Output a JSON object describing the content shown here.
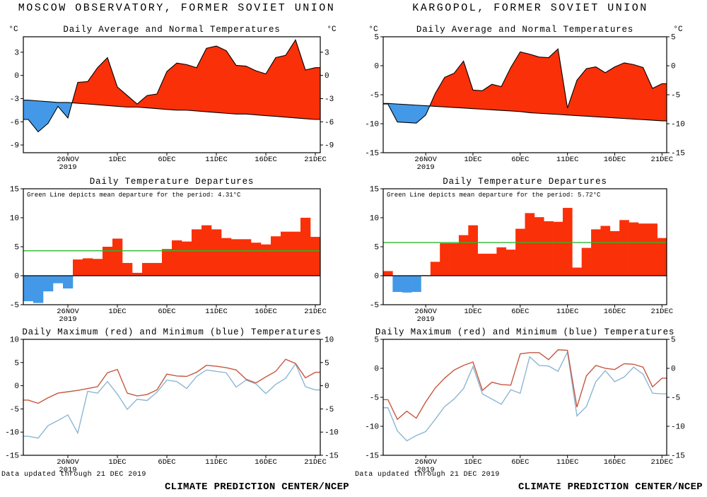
{
  "footer": {
    "note": "Data updated through 21 DEC 2019",
    "brand": "CLIMATE PREDICTION CENTER/NCEP"
  },
  "colors": {
    "above_normal_fill": "#fa3008",
    "below_normal_fill": "#4399e8",
    "mean_departure_line": "#2cb82c",
    "max_temp_line": "#c65740",
    "min_temp_line": "#8cb6d4",
    "axis": "#000000"
  },
  "x_axis": {
    "start": "22 NOV 2019",
    "end": "21 DEC 2019",
    "slots": 30,
    "ticks": [
      {
        "slot": 4,
        "label": "26NOV",
        "sublabel": "2019"
      },
      {
        "slot": 9,
        "label": "1DEC"
      },
      {
        "slot": 14,
        "label": "6DEC"
      },
      {
        "slot": 19,
        "label": "11DEC"
      },
      {
        "slot": 24,
        "label": "16DEC"
      },
      {
        "slot": 29,
        "label": "21DEC"
      }
    ]
  },
  "chart_data": [
    {
      "station": "MOSCOW OBSERVATORY, FORMER SOVIET UNION",
      "charts": [
        {
          "type": "area",
          "title": "Daily Average and Normal Temperatures",
          "unit": "°C",
          "ylim": [
            -10,
            5
          ],
          "yticks": [
            3,
            0,
            -3,
            -6,
            -9
          ],
          "yticks_right": true,
          "series": {
            "average": [
              -5.7,
              -7.3,
              -6.2,
              -4.0,
              -5.5,
              -0.9,
              -0.8,
              1.0,
              2.3,
              -1.5,
              -2.6,
              -3.7,
              -2.6,
              -2.4,
              0.5,
              1.6,
              1.4,
              1.0,
              3.5,
              3.8,
              3.2,
              1.3,
              1.2,
              0.6,
              0.2,
              2.3,
              2.6,
              4.6,
              0.7,
              1.0
            ],
            "normal": [
              -3.2,
              -3.3,
              -3.4,
              -3.5,
              -3.5,
              -3.6,
              -3.7,
              -3.8,
              -3.9,
              -4.0,
              -4.1,
              -4.1,
              -4.2,
              -4.3,
              -4.4,
              -4.5,
              -4.5,
              -4.6,
              -4.7,
              -4.8,
              -4.9,
              -5.0,
              -5.0,
              -5.1,
              -5.2,
              -5.3,
              -5.4,
              -5.5,
              -5.6,
              -5.7
            ]
          }
        },
        {
          "type": "bar",
          "title": "Daily Temperature Departures",
          "ylim": [
            -5,
            15
          ],
          "yticks": [
            15,
            10,
            5,
            0,
            -5
          ],
          "yticks_right": false,
          "annotation": "Green Line depicts mean departure for the period: 4.31°C",
          "mean_departure": 4.31,
          "values": [
            -4.4,
            -4.7,
            -2.7,
            -1.3,
            -2.2,
            2.8,
            3.0,
            2.9,
            5.0,
            6.4,
            2.2,
            0.5,
            2.2,
            2.2,
            4.6,
            6.1,
            5.9,
            8.0,
            8.7,
            8.0,
            6.5,
            6.3,
            6.3,
            5.7,
            5.4,
            6.8,
            7.6,
            7.6,
            10.0,
            6.7
          ]
        },
        {
          "type": "line",
          "title": "Daily Maximum (red) and Minimum (blue) Temperatures",
          "ylim": [
            -15,
            10
          ],
          "yticks": [
            10,
            5,
            0,
            -5,
            -10,
            -15
          ],
          "yticks_right": true,
          "series": {
            "max": [
              -3.1,
              -3.8,
              -2.6,
              -1.6,
              -1.3,
              -1.0,
              -0.6,
              -0.2,
              2.8,
              3.5,
              -1.6,
              -2.2,
              -1.9,
              -0.9,
              2.5,
              2.1,
              2.0,
              2.9,
              4.4,
              4.2,
              3.9,
              3.4,
              1.4,
              0.6,
              1.9,
              3.1,
              5.7,
              4.8,
              1.7,
              2.9
            ],
            "min": [
              -10.9,
              -11.3,
              -8.6,
              -7.5,
              -6.3,
              -10.2,
              -1.2,
              -1.6,
              0.9,
              -1.8,
              -5.1,
              -2.9,
              -3.2,
              -1.4,
              1.2,
              0.9,
              -0.6,
              2.0,
              3.4,
              3.1,
              2.8,
              -0.3,
              1.2,
              0.4,
              -1.7,
              0.3,
              1.6,
              4.7,
              -0.2,
              -0.9
            ]
          }
        }
      ]
    },
    {
      "station": "KARGOPOL, FORMER SOVIET UNION",
      "charts": [
        {
          "type": "area",
          "title": "Daily Average and Normal Temperatures",
          "unit": "°C",
          "ylim": [
            -15,
            5
          ],
          "yticks": [
            5,
            0,
            -5,
            -10,
            -15
          ],
          "yticks_right": true,
          "series": {
            "average": [
              -6.6,
              -9.7,
              -9.8,
              -9.9,
              -8.5,
              -4.8,
              -2.0,
              -1.3,
              0.8,
              -4.2,
              -4.3,
              -3.2,
              -3.6,
              -0.3,
              2.4,
              2.0,
              1.5,
              1.4,
              2.9,
              -7.3,
              -2.5,
              -0.5,
              -0.2,
              -1.2,
              -0.2,
              0.5,
              0.2,
              -0.3,
              -3.9,
              -3.1
            ],
            "normal": [
              -6.5,
              -6.6,
              -6.7,
              -6.8,
              -6.9,
              -7.0,
              -7.1,
              -7.2,
              -7.3,
              -7.4,
              -7.5,
              -7.6,
              -7.7,
              -7.8,
              -7.9,
              -8.1,
              -8.2,
              -8.3,
              -8.4,
              -8.5,
              -8.6,
              -8.7,
              -8.8,
              -8.9,
              -9.0,
              -9.1,
              -9.2,
              -9.3,
              -9.4,
              -9.5
            ]
          }
        },
        {
          "type": "bar",
          "title": "Daily Temperature Departures",
          "ylim": [
            -5,
            15
          ],
          "yticks": [
            15,
            10,
            5,
            0,
            -5
          ],
          "yticks_right": false,
          "annotation": "Green Line depicts mean departure for the period: 5.72°C",
          "mean_departure": 5.72,
          "values": [
            0.8,
            -2.8,
            -2.9,
            -2.8,
            0.1,
            2.4,
            5.6,
            5.6,
            7.0,
            8.7,
            3.8,
            3.8,
            4.9,
            4.5,
            8.1,
            10.8,
            10.1,
            9.4,
            9.3,
            11.7,
            1.4,
            4.8,
            8.0,
            8.6,
            7.7,
            9.6,
            9.2,
            9.0,
            9.0,
            6.5
          ]
        },
        {
          "type": "line",
          "title": "Daily Maximum (red) and Minimum (blue) Temperatures",
          "ylim": [
            -15,
            5
          ],
          "yticks": [
            5,
            0,
            -5,
            -10,
            -15
          ],
          "yticks_right": true,
          "series": {
            "max": [
              -5.4,
              -8.8,
              -7.4,
              -8.6,
              -5.8,
              -3.4,
              -1.7,
              -0.3,
              0.5,
              1.1,
              -3.8,
              -2.4,
              -2.8,
              -2.9,
              2.5,
              2.7,
              2.7,
              1.5,
              3.2,
              3.1,
              -6.7,
              -1.3,
              0.5,
              0.0,
              -0.2,
              0.8,
              0.7,
              0.2,
              -3.2,
              -1.7
            ],
            "min": [
              -6.8,
              -10.8,
              -12.5,
              -11.6,
              -10.9,
              -8.8,
              -6.6,
              -5.3,
              -3.5,
              0.3,
              -4.4,
              -5.3,
              -6.2,
              -3.7,
              -4.3,
              2.0,
              0.5,
              0.4,
              -0.5,
              2.8,
              -8.2,
              -6.6,
              -2.3,
              -0.4,
              -2.3,
              -1.5,
              0.2,
              -1.0,
              -4.3,
              -4.4
            ]
          }
        }
      ]
    }
  ]
}
